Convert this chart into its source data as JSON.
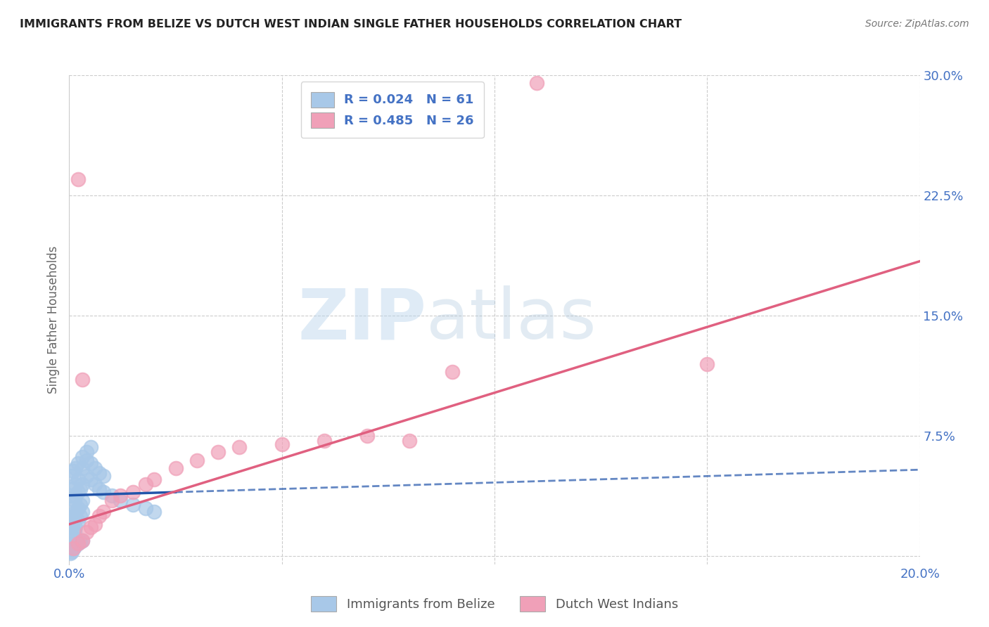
{
  "title": "IMMIGRANTS FROM BELIZE VS DUTCH WEST INDIAN SINGLE FATHER HOUSEHOLDS CORRELATION CHART",
  "source": "Source: ZipAtlas.com",
  "ylabel": "Single Father Households",
  "x_min": 0.0,
  "x_max": 0.2,
  "y_min": -0.005,
  "y_max": 0.3,
  "blue_R": 0.024,
  "blue_N": 61,
  "pink_R": 0.485,
  "pink_N": 26,
  "blue_color": "#a8c8e8",
  "pink_color": "#f0a0b8",
  "blue_line_color": "#2255aa",
  "pink_line_color": "#e06080",
  "watermark_zip": "ZIP",
  "watermark_atlas": "atlas",
  "legend_label_blue": "Immigrants from Belize",
  "legend_label_pink": "Dutch West Indians",
  "blue_scatter": [
    [
      0.0005,
      0.005
    ],
    [
      0.001,
      0.008
    ],
    [
      0.0008,
      0.012
    ],
    [
      0.0012,
      0.015
    ],
    [
      0.0015,
      0.018
    ],
    [
      0.002,
      0.022
    ],
    [
      0.0025,
      0.025
    ],
    [
      0.003,
      0.028
    ],
    [
      0.0005,
      0.02
    ],
    [
      0.001,
      0.025
    ],
    [
      0.0008,
      0.03
    ],
    [
      0.0012,
      0.035
    ],
    [
      0.0015,
      0.038
    ],
    [
      0.002,
      0.04
    ],
    [
      0.0025,
      0.042
    ],
    [
      0.003,
      0.045
    ],
    [
      0.0005,
      0.038
    ],
    [
      0.001,
      0.042
    ],
    [
      0.0015,
      0.045
    ],
    [
      0.002,
      0.048
    ],
    [
      0.0005,
      0.05
    ],
    [
      0.001,
      0.053
    ],
    [
      0.0015,
      0.055
    ],
    [
      0.002,
      0.058
    ],
    [
      0.003,
      0.055
    ],
    [
      0.004,
      0.05
    ],
    [
      0.005,
      0.048
    ],
    [
      0.006,
      0.045
    ],
    [
      0.007,
      0.042
    ],
    [
      0.008,
      0.04
    ],
    [
      0.01,
      0.038
    ],
    [
      0.012,
      0.035
    ],
    [
      0.015,
      0.032
    ],
    [
      0.018,
      0.03
    ],
    [
      0.02,
      0.028
    ],
    [
      0.003,
      0.062
    ],
    [
      0.004,
      0.06
    ],
    [
      0.005,
      0.058
    ],
    [
      0.006,
      0.055
    ],
    [
      0.007,
      0.052
    ],
    [
      0.008,
      0.05
    ],
    [
      0.0003,
      0.002
    ],
    [
      0.0006,
      0.003
    ],
    [
      0.0008,
      0.004
    ],
    [
      0.001,
      0.005
    ],
    [
      0.0012,
      0.006
    ],
    [
      0.0015,
      0.007
    ],
    [
      0.002,
      0.008
    ],
    [
      0.0025,
      0.009
    ],
    [
      0.003,
      0.01
    ],
    [
      0.0003,
      0.015
    ],
    [
      0.0006,
      0.018
    ],
    [
      0.0008,
      0.02
    ],
    [
      0.001,
      0.022
    ],
    [
      0.0012,
      0.025
    ],
    [
      0.0015,
      0.028
    ],
    [
      0.002,
      0.03
    ],
    [
      0.0025,
      0.032
    ],
    [
      0.003,
      0.035
    ],
    [
      0.004,
      0.065
    ],
    [
      0.005,
      0.068
    ]
  ],
  "pink_scatter": [
    [
      0.001,
      0.005
    ],
    [
      0.002,
      0.008
    ],
    [
      0.003,
      0.01
    ],
    [
      0.004,
      0.015
    ],
    [
      0.005,
      0.018
    ],
    [
      0.006,
      0.02
    ],
    [
      0.007,
      0.025
    ],
    [
      0.008,
      0.028
    ],
    [
      0.01,
      0.035
    ],
    [
      0.012,
      0.038
    ],
    [
      0.015,
      0.04
    ],
    [
      0.018,
      0.045
    ],
    [
      0.02,
      0.048
    ],
    [
      0.025,
      0.055
    ],
    [
      0.03,
      0.06
    ],
    [
      0.035,
      0.065
    ],
    [
      0.04,
      0.068
    ],
    [
      0.05,
      0.07
    ],
    [
      0.06,
      0.072
    ],
    [
      0.07,
      0.075
    ],
    [
      0.08,
      0.072
    ],
    [
      0.002,
      0.235
    ],
    [
      0.09,
      0.115
    ],
    [
      0.11,
      0.295
    ],
    [
      0.15,
      0.12
    ],
    [
      0.003,
      0.11
    ]
  ],
  "blue_line_intercept": 0.038,
  "blue_line_slope": 0.08,
  "pink_line_intercept": 0.02,
  "pink_line_slope": 0.82
}
